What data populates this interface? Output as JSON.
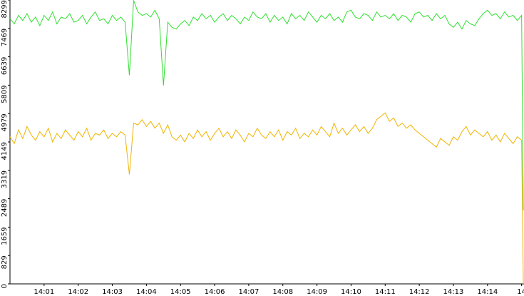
{
  "chart_data": {
    "type": "line",
    "x": [
      0,
      0.125,
      0.25,
      0.375,
      0.5,
      0.625,
      0.75,
      0.875,
      1,
      1.125,
      1.25,
      1.375,
      1.5,
      1.625,
      1.75,
      1.875,
      2,
      2.125,
      2.25,
      2.375,
      2.5,
      2.625,
      2.75,
      2.875,
      3,
      3.125,
      3.25,
      3.375,
      3.5,
      3.625,
      3.75,
      3.875,
      4,
      4.125,
      4.25,
      4.375,
      4.5,
      4.625,
      4.75,
      4.875,
      5,
      5.125,
      5.25,
      5.375,
      5.5,
      5.625,
      5.75,
      5.875,
      6,
      6.125,
      6.25,
      6.375,
      6.5,
      6.625,
      6.75,
      6.875,
      7,
      7.125,
      7.25,
      7.375,
      7.5,
      7.625,
      7.75,
      7.875,
      8,
      8.125,
      8.25,
      8.375,
      8.5,
      8.625,
      8.75,
      8.875,
      9,
      9.125,
      9.25,
      9.375,
      9.5,
      9.625,
      9.75,
      9.875,
      10,
      10.125,
      10.25,
      10.375,
      10.5,
      10.625,
      10.75,
      10.875,
      11,
      11.125,
      11.25,
      11.375,
      11.5,
      11.625,
      11.75,
      11.875,
      12,
      12.125,
      12.25,
      12.375,
      12.5,
      12.625,
      12.75,
      12.875,
      13,
      13.125,
      13.25,
      13.375,
      13.5,
      13.625,
      13.75,
      13.875,
      14,
      14.125,
      14.25,
      14.375,
      14.5,
      14.625,
      14.75,
      14.875,
      15,
      15.05
    ],
    "series": [
      {
        "color": "#2ee02e",
        "values": [
          7750,
          7600,
          7850,
          7700,
          7900,
          7650,
          7800,
          7550,
          7850,
          7700,
          7950,
          7600,
          7800,
          7750,
          7900,
          7650,
          7700,
          7850,
          7600,
          7800,
          7950,
          7700,
          7750,
          7600,
          7850,
          7700,
          7800,
          7650,
          6100,
          8290,
          7950,
          7850,
          7900,
          7800,
          8000,
          7750,
          5800,
          7650,
          7500,
          7450,
          7600,
          7700,
          7550,
          7800,
          7700,
          7900,
          7750,
          7850,
          7650,
          7800,
          7900,
          7700,
          7850,
          7750,
          7600,
          7800,
          7700,
          7950,
          7800,
          7750,
          7900,
          7650,
          7850,
          7700,
          7800,
          7600,
          7900,
          7750,
          7850,
          7700,
          7950,
          7800,
          7650,
          7850,
          7750,
          7900,
          7700,
          7800,
          7650,
          7950,
          8000,
          7800,
          7750,
          7900,
          7850,
          7700,
          7950,
          7800,
          7850,
          7750,
          7900,
          7700,
          7850,
          7800,
          7650,
          7900,
          7950,
          7800,
          7850,
          7700,
          7900,
          7750,
          7850,
          7600,
          7500,
          7650,
          7450,
          7700,
          7600,
          7550,
          7750,
          7900,
          8000,
          7850,
          7900,
          7750,
          7950,
          7800,
          7850,
          7700,
          7850,
          2150
        ]
      },
      {
        "color": "#f0b400",
        "values": [
          4300,
          4100,
          4500,
          4250,
          4600,
          4350,
          4200,
          4450,
          4300,
          4550,
          4150,
          4400,
          4250,
          4500,
          4350,
          4200,
          4450,
          4300,
          4550,
          4200,
          4400,
          4350,
          4500,
          4250,
          4400,
          4300,
          4450,
          4350,
          3200,
          4700,
          4650,
          4800,
          4600,
          4750,
          4550,
          4700,
          4400,
          4650,
          4300,
          4200,
          4350,
          4150,
          4400,
          4250,
          4500,
          4300,
          4450,
          4200,
          4400,
          4550,
          4300,
          4450,
          4250,
          4500,
          4350,
          4150,
          4400,
          4300,
          4550,
          4350,
          4250,
          4450,
          4300,
          4500,
          4200,
          4450,
          4350,
          4550,
          4250,
          4400,
          4300,
          4500,
          4350,
          4600,
          4450,
          4300,
          4700,
          4400,
          4550,
          4350,
          4500,
          4650,
          4450,
          4600,
          4400,
          4550,
          4800,
          4900,
          5000,
          4750,
          4850,
          4600,
          4700,
          4550,
          4650,
          4500,
          4400,
          4300,
          4200,
          4100,
          4000,
          4250,
          4150,
          4050,
          4300,
          4200,
          4450,
          4600,
          4350,
          4500,
          4400,
          4300,
          4450,
          4200,
          4350,
          4150,
          4400,
          4250,
          4100,
          4300,
          4200,
          0
        ]
      }
    ],
    "xlim": [
      0,
      15.07
    ],
    "xticks": [
      {
        "value": 1,
        "label": "14:01"
      },
      {
        "value": 2,
        "label": "14:02"
      },
      {
        "value": 3,
        "label": "14:03"
      },
      {
        "value": 4,
        "label": "14:04"
      },
      {
        "value": 5,
        "label": "14:05"
      },
      {
        "value": 6,
        "label": "14:06"
      },
      {
        "value": 7,
        "label": "14:07"
      },
      {
        "value": 8,
        "label": "14:08"
      },
      {
        "value": 9,
        "label": "14:09"
      },
      {
        "value": 10,
        "label": "14:10"
      },
      {
        "value": 11,
        "label": "14:11"
      },
      {
        "value": 12,
        "label": "14:12"
      },
      {
        "value": 13,
        "label": "14:13"
      },
      {
        "value": 14,
        "label": "14:14"
      },
      {
        "value": 15,
        "label": "14"
      }
    ],
    "ylim": [
      0,
      8299
    ],
    "yticks": [
      0,
      829,
      1659,
      2489,
      3319,
      4149,
      4979,
      5809,
      6639,
      7469,
      8299
    ]
  }
}
